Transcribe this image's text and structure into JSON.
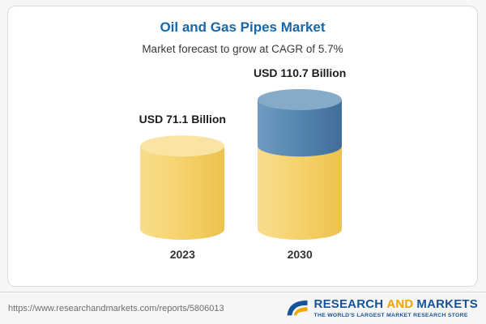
{
  "header": {
    "accent_blue": "#1667a9"
  },
  "chart_data": {
    "type": "bar",
    "subtype": "3d-cylinder",
    "title": "Oil and Gas Pipes Market",
    "subtitle": "Market forecast to grow at CAGR of 5.7%",
    "cagr": "5.7%",
    "unit": "USD Billion",
    "categories": [
      "2023",
      "2030"
    ],
    "values": [
      71.1,
      110.7
    ],
    "value_labels": [
      "USD 71.1 Billion",
      "USD 110.7 Billion"
    ],
    "xlabel": "",
    "ylabel": "",
    "legend": "none",
    "grid": "off",
    "colors": {
      "base_body": [
        "#f8dd8e",
        "#f5d26b",
        "#ecc24f"
      ],
      "base_top": "#fae4a3",
      "growth_body": [
        "#6f9cc2",
        "#5484ad",
        "#416e99"
      ],
      "growth_top": "#85abc9"
    }
  },
  "footer": {
    "url": "https://www.researchandmarkets.com/reports/5806013",
    "logo": {
      "research": "RESEARCH",
      "and": "AND",
      "markets": "MARKETS",
      "tagline": "THE WORLD'S LARGEST MARKET RESEARCH STORE",
      "blue": "#15549a",
      "orange": "#f0a500"
    }
  }
}
